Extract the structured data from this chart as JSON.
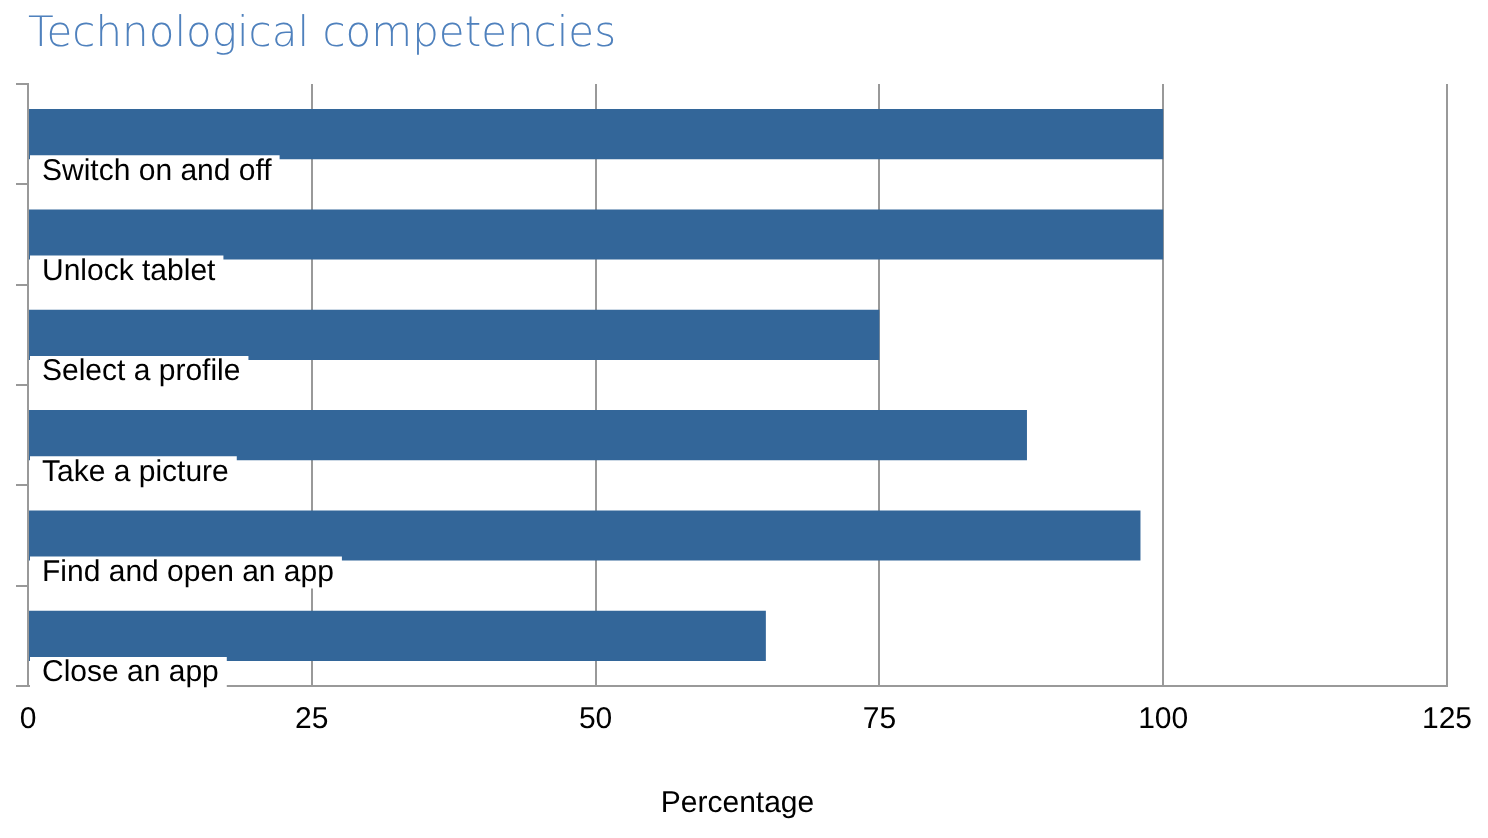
{
  "chart_data": {
    "type": "bar",
    "orientation": "horizontal",
    "title": "Technological competencies",
    "xlabel": "Percentage",
    "categories": [
      "Switch on and off",
      "Unlock tablet",
      "Select a profile",
      "Take a picture",
      "Find and open an app",
      "Close an app"
    ],
    "values": [
      100,
      100,
      75,
      88,
      98,
      65
    ],
    "color": "#336699",
    "xlim": [
      0,
      125
    ],
    "xticks": [
      0,
      25,
      50,
      75,
      100,
      125
    ],
    "grid": "x"
  }
}
